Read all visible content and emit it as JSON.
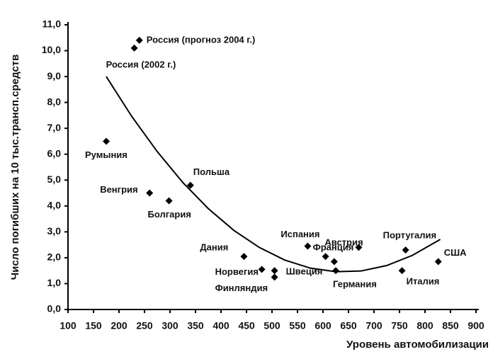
{
  "chart_data": {
    "type": "scatter",
    "ylabel": "Число погибших на 10 тыс.трансп.средств",
    "xlabel": "Уровень автомобилизации",
    "xlim": [
      100,
      900
    ],
    "xticks": [
      100,
      150,
      200,
      250,
      300,
      350,
      400,
      450,
      500,
      550,
      600,
      650,
      700,
      750,
      800,
      850,
      900
    ],
    "ylim": [
      0,
      11
    ],
    "yticks": [
      {
        "value": 0,
        "label": "0,0"
      },
      {
        "value": 1,
        "label": "1,0"
      },
      {
        "value": 2,
        "label": "2,0"
      },
      {
        "value": 3,
        "label": "3,0"
      },
      {
        "value": 4,
        "label": "4,0"
      },
      {
        "value": 5,
        "label": "5,0"
      },
      {
        "value": 6,
        "label": "6,0"
      },
      {
        "value": 7,
        "label": "7,0"
      },
      {
        "value": 8,
        "label": "8,0"
      },
      {
        "value": 9,
        "label": "9,0"
      },
      {
        "value": 10,
        "label": "10,0"
      },
      {
        "value": 11,
        "label": "11,0"
      }
    ],
    "series": [
      {
        "color": "#000000",
        "x": [
          240,
          230,
          175,
          260,
          298,
          340,
          445,
          480,
          505,
          505,
          570,
          605,
          622,
          625,
          670,
          762,
          755,
          826
        ],
        "values": [
          10.4,
          10.1,
          6.5,
          4.5,
          4.2,
          4.8,
          2.05,
          1.55,
          1.25,
          1.5,
          2.45,
          2.05,
          1.85,
          1.5,
          2.4,
          2.3,
          1.5,
          1.85
        ],
        "point_labels": [
          "Россия (прогноз 2004 г.)",
          "Россия (2002 г.)",
          "Румыния",
          "Венгрия",
          "Болгария",
          "Польша",
          "Дания",
          "Норвегия",
          "Финляндия",
          "Швеция",
          "Испания",
          "Франция",
          null,
          "Германия",
          "Австрия",
          "Португалия",
          "Италия",
          "США"
        ]
      }
    ],
    "trend": {
      "color": "#000000",
      "x": [
        175,
        225,
        275,
        325,
        375,
        425,
        475,
        525,
        575,
        625,
        675,
        725,
        775,
        830
      ],
      "values": [
        9.0,
        7.46,
        6.1,
        4.91,
        3.9,
        3.06,
        2.4,
        1.91,
        1.6,
        1.46,
        1.49,
        1.7,
        2.09,
        2.71
      ]
    }
  }
}
